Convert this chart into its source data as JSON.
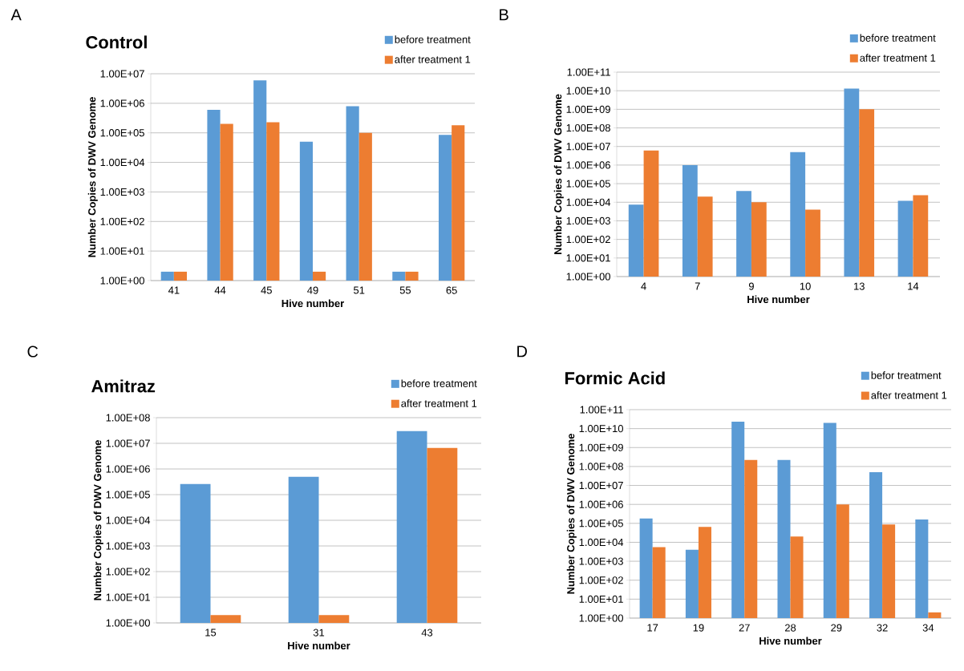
{
  "chart_data": [
    {
      "type": "bar",
      "title": "Control",
      "annotations": [
        "A"
      ],
      "xlabel": "Hive number",
      "ylabel": "Number Copies of DWV Genome",
      "log": true,
      "grid": "y",
      "legend": "top right",
      "categories": [
        "41",
        "44",
        "45",
        "49",
        "51",
        "55",
        "65"
      ],
      "ylim": [
        1,
        10000000.0
      ],
      "yticks": [
        {
          "value": 1,
          "label": "1.00E+00"
        },
        {
          "value": 10,
          "label": "1.00E+01"
        },
        {
          "value": 100,
          "label": "1.00E+02"
        },
        {
          "value": 1000,
          "label": "1.00E+03"
        },
        {
          "value": 10000.0,
          "label": "1.00E+04"
        },
        {
          "value": 100000.0,
          "label": "1.00E+05"
        },
        {
          "value": 1000000.0,
          "label": "1.00E+06"
        },
        {
          "value": 10000000.0,
          "label": "1.00E+07"
        }
      ],
      "series": [
        {
          "name": "before treatment",
          "color": "#5b9bd5",
          "values": [
            2,
            600000.0,
            6000000.0,
            50000.0,
            800000.0,
            2,
            85000.0
          ]
        },
        {
          "name": "after treatment 1",
          "color": "#ed7d31",
          "values": [
            2,
            200000.0,
            230000.0,
            2,
            100000.0,
            2,
            180000.0
          ]
        }
      ]
    },
    {
      "type": "bar",
      "annotations": [
        "B"
      ],
      "xlabel": "Hive number",
      "ylabel": "Number Copies of DWV Genome",
      "log": true,
      "grid": "y",
      "legend": "top right",
      "categories": [
        "4",
        "7",
        "9",
        "10",
        "13",
        "14"
      ],
      "ylim": [
        1,
        100000000000.0
      ],
      "yticks": [
        {
          "value": 1,
          "label": "1.00E+00"
        },
        {
          "value": 10,
          "label": "1.00E+01"
        },
        {
          "value": 100,
          "label": "1.00E+02"
        },
        {
          "value": 1000,
          "label": "1.00E+03"
        },
        {
          "value": 10000.0,
          "label": "1.00E+04"
        },
        {
          "value": 100000.0,
          "label": "1.00E+05"
        },
        {
          "value": 1000000.0,
          "label": "1.00E+06"
        },
        {
          "value": 10000000.0,
          "label": "1.00E+07"
        },
        {
          "value": 100000000.0,
          "label": "1.00E+08"
        },
        {
          "value": 1000000000.0,
          "label": "1.00E+09"
        },
        {
          "value": 10000000000.0,
          "label": "1.00E+10"
        },
        {
          "value": 100000000000.0,
          "label": "1.00E+11"
        }
      ],
      "series": [
        {
          "name": "before treatment",
          "color": "#5b9bd5",
          "values": [
            7500.0,
            1000000.0,
            40000.0,
            5000000.0,
            13000000000.0,
            12000.0
          ]
        },
        {
          "name": "after treatment 1",
          "color": "#ed7d31",
          "values": [
            6000000.0,
            20000.0,
            10000.0,
            4000.0,
            1000000000.0,
            24000.0
          ]
        }
      ]
    },
    {
      "type": "bar",
      "title": "Amitraz",
      "annotations": [
        "C"
      ],
      "xlabel": "Hive number",
      "ylabel": "Number Copies of DWV Genome",
      "log": true,
      "grid": "y",
      "legend": "top right",
      "categories": [
        "15",
        "31",
        "43"
      ],
      "ylim": [
        1,
        100000000.0
      ],
      "yticks": [
        {
          "value": 1,
          "label": "1.00E+00"
        },
        {
          "value": 10,
          "label": "1.00E+01"
        },
        {
          "value": 100,
          "label": "1.00E+02"
        },
        {
          "value": 1000,
          "label": "1.00E+03"
        },
        {
          "value": 10000.0,
          "label": "1.00E+04"
        },
        {
          "value": 100000.0,
          "label": "1.00E+05"
        },
        {
          "value": 1000000.0,
          "label": "1.00E+06"
        },
        {
          "value": 10000000.0,
          "label": "1.00E+07"
        },
        {
          "value": 100000000.0,
          "label": "1.00E+08"
        }
      ],
      "series": [
        {
          "name": "before treatment",
          "color": "#5b9bd5",
          "values": [
            260000.0,
            500000.0,
            30000000.0
          ]
        },
        {
          "name": "after treatment 1",
          "color": "#ed7d31",
          "values": [
            2,
            2,
            6600000.0
          ]
        }
      ]
    },
    {
      "type": "bar",
      "title": "Formic Acid",
      "annotations": [
        "D"
      ],
      "xlabel": "Hive number",
      "ylabel": "Number Copies of DWV Genome",
      "log": true,
      "grid": "y",
      "legend": "top right",
      "categories": [
        "17",
        "19",
        "27",
        "28",
        "29",
        "32",
        "34"
      ],
      "ylim": [
        1,
        100000000000.0
      ],
      "yticks": [
        {
          "value": 1,
          "label": "1.00E+00"
        },
        {
          "value": 10,
          "label": "1.00E+01"
        },
        {
          "value": 100,
          "label": "1.00E+02"
        },
        {
          "value": 1000,
          "label": "1.00E+03"
        },
        {
          "value": 10000.0,
          "label": "1.00E+04"
        },
        {
          "value": 100000.0,
          "label": "1.00E+05"
        },
        {
          "value": 1000000.0,
          "label": "1.00E+06"
        },
        {
          "value": 10000000.0,
          "label": "1.00E+07"
        },
        {
          "value": 100000000.0,
          "label": "1.00E+08"
        },
        {
          "value": 1000000000.0,
          "label": "1.00E+09"
        },
        {
          "value": 10000000000.0,
          "label": "1.00E+10"
        },
        {
          "value": 100000000000.0,
          "label": "1.00E+11"
        }
      ],
      "series": [
        {
          "name": "befor treatment",
          "color": "#5b9bd5",
          "values": [
            180000.0,
            4000.0,
            23000000000.0,
            220000000.0,
            20000000000.0,
            50000000.0,
            160000.0
          ]
        },
        {
          "name": "after treatment 1",
          "color": "#ed7d31",
          "values": [
            5600.0,
            65000.0,
            220000000.0,
            20000.0,
            1000000.0,
            87000.0,
            2
          ]
        }
      ]
    }
  ]
}
